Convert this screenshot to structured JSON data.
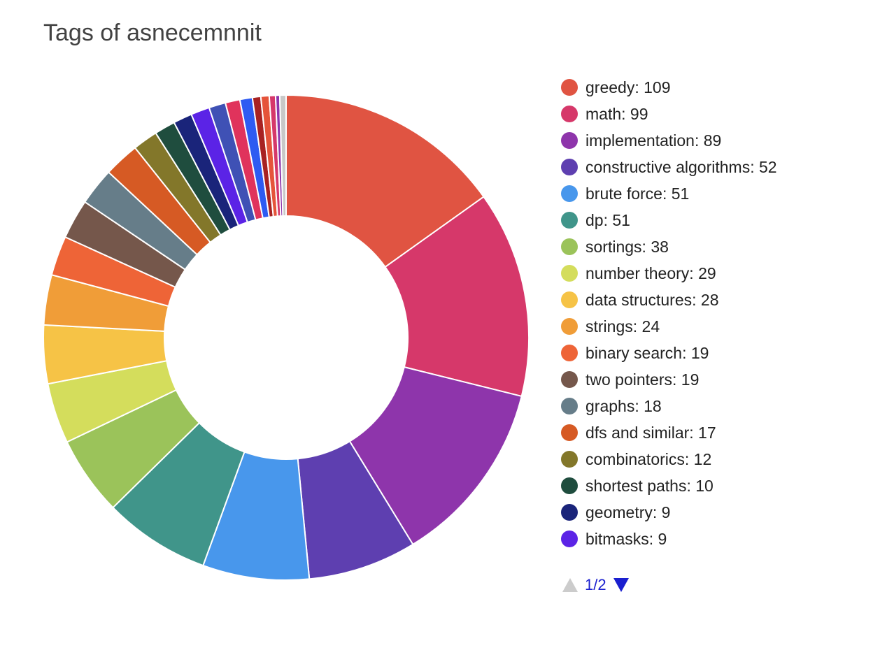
{
  "chart_data": {
    "type": "pie",
    "variant": "donut",
    "title": "Tags of asnecemnnit",
    "slices": [
      {
        "label": "greedy",
        "value": 109,
        "color": "#e05442"
      },
      {
        "label": "math",
        "value": 99,
        "color": "#d6386a"
      },
      {
        "label": "implementation",
        "value": 89,
        "color": "#8e35ab"
      },
      {
        "label": "constructive algorithms",
        "value": 52,
        "color": "#5e3fb0"
      },
      {
        "label": "brute force",
        "value": 51,
        "color": "#4897ec"
      },
      {
        "label": "dp",
        "value": 51,
        "color": "#40958a"
      },
      {
        "label": "sortings",
        "value": 38,
        "color": "#9bc35a"
      },
      {
        "label": "number theory",
        "value": 29,
        "color": "#d4dd5c"
      },
      {
        "label": "data structures",
        "value": 28,
        "color": "#f6c346"
      },
      {
        "label": "strings",
        "value": 24,
        "color": "#f09d38"
      },
      {
        "label": "binary search",
        "value": 19,
        "color": "#ee6437"
      },
      {
        "label": "two pointers",
        "value": 19,
        "color": "#75574b"
      },
      {
        "label": "graphs",
        "value": 18,
        "color": "#667d89"
      },
      {
        "label": "dfs and similar",
        "value": 17,
        "color": "#d65a24"
      },
      {
        "label": "combinatorics",
        "value": 12,
        "color": "#83772a"
      },
      {
        "label": "shortest paths",
        "value": 10,
        "color": "#1f4d3e"
      },
      {
        "label": "geometry",
        "value": 9,
        "color": "#1a247a"
      },
      {
        "label": "bitmasks",
        "value": 9,
        "color": "#5b23e6"
      },
      {
        "label": "",
        "value": 8,
        "color": "#3f51b5"
      },
      {
        "label": "",
        "value": 7,
        "color": "#e0335c"
      },
      {
        "label": "",
        "value": 6,
        "color": "#2e5bf2"
      },
      {
        "label": "",
        "value": 4,
        "color": "#a82222"
      },
      {
        "label": "",
        "value": 4,
        "color": "#e5543a"
      },
      {
        "label": "",
        "value": 3,
        "color": "#d6386a"
      },
      {
        "label": "",
        "value": 2,
        "color": "#8e35ab"
      },
      {
        "label": "",
        "value": 3,
        "color": "#c8c8c8"
      }
    ],
    "legend_position": "right",
    "legend_visible_count": 18
  },
  "legend_pager": {
    "page_text": "1/2",
    "prev_color": "#cccccc",
    "next_color": "#1a1fcf"
  }
}
